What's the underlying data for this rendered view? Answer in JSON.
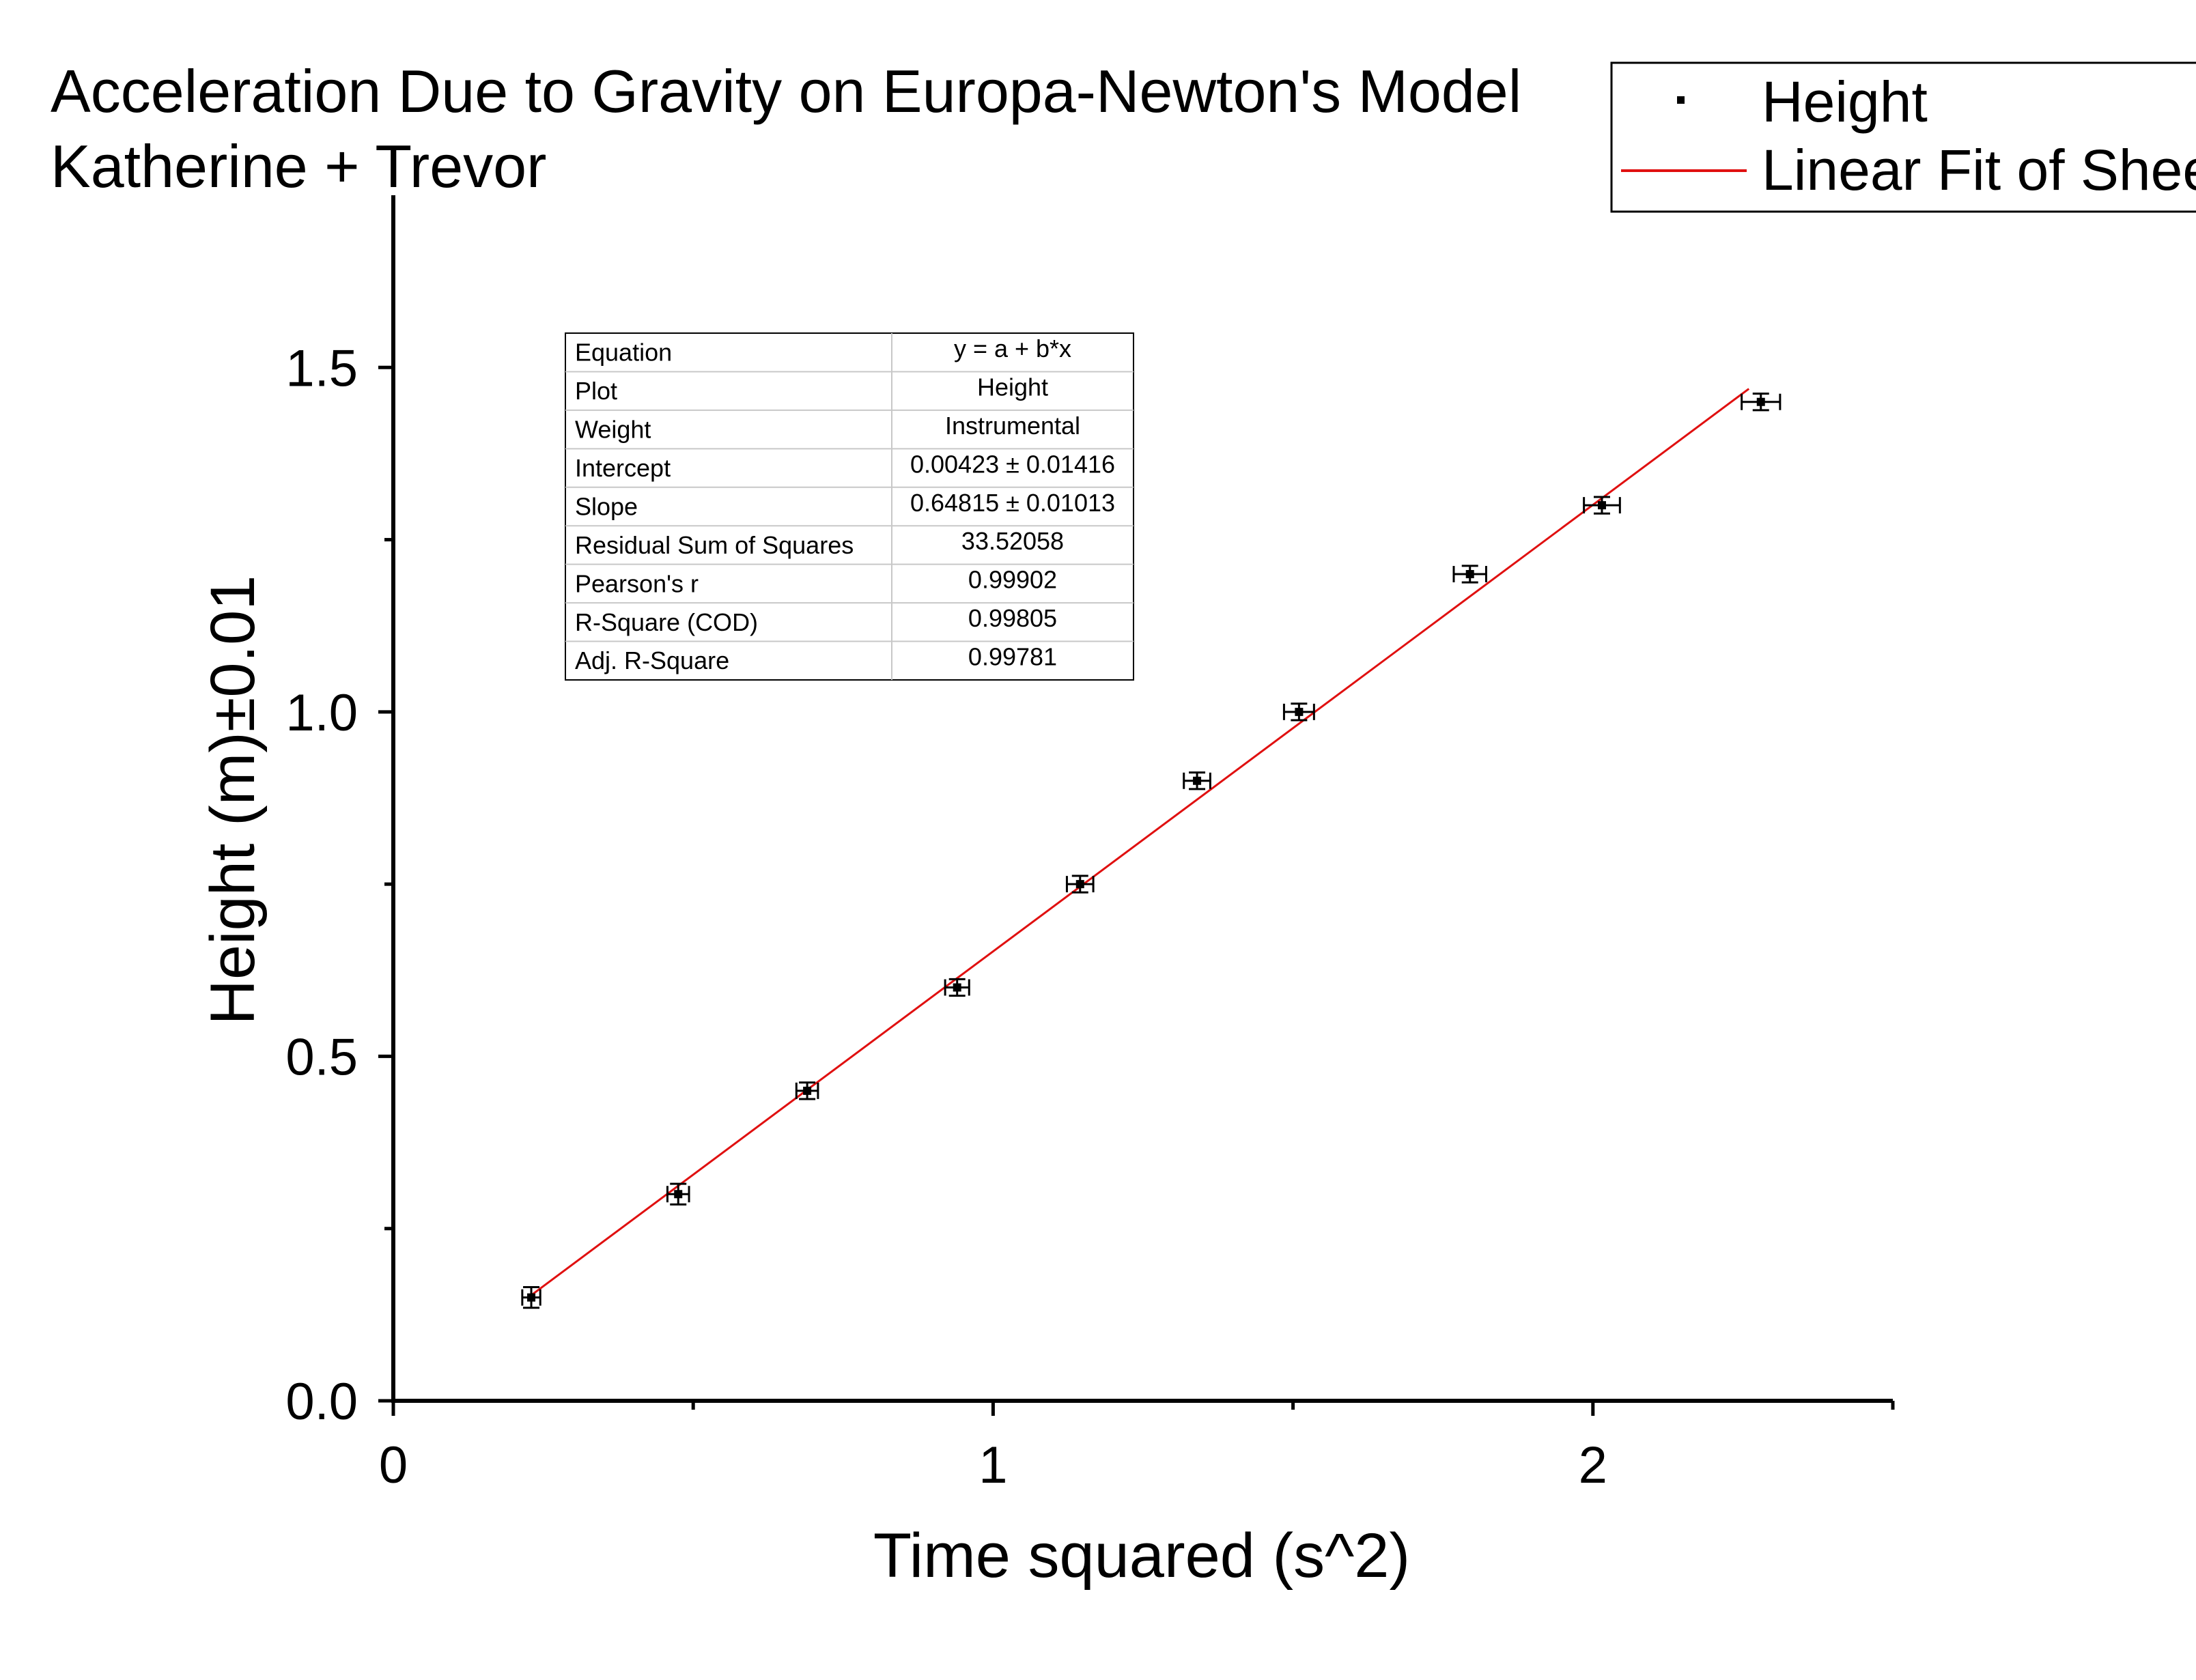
{
  "chart_data": {
    "type": "scatter",
    "title": "Acceleration Due to Gravity on Europa-Newton's Model",
    "subtitle": "Katherine + Trevor",
    "xlabel": "Time squared (s^2)",
    "ylabel": "Height (m)±0.01",
    "xlim": [
      0,
      2.5
    ],
    "ylim": [
      0,
      1.75
    ],
    "x_ticks": [
      {
        "value": 0,
        "label": "0"
      },
      {
        "value": 1,
        "label": "1"
      },
      {
        "value": 2,
        "label": "2"
      }
    ],
    "x_minor_ticks": [
      0.5,
      1.5,
      2.5
    ],
    "y_ticks": [
      {
        "value": 0.0,
        "label": "0.0"
      },
      {
        "value": 0.5,
        "label": "0.5"
      },
      {
        "value": 1.0,
        "label": "1.0"
      },
      {
        "value": 1.5,
        "label": "1.5"
      }
    ],
    "y_minor_ticks": [
      0.25,
      0.75,
      1.25
    ],
    "grid": false,
    "series": [
      {
        "name": "Height",
        "color": "#000000",
        "points": [
          {
            "x": 0.23,
            "y": 0.15,
            "xerr": 0.015,
            "yerr": 0.015
          },
          {
            "x": 0.475,
            "y": 0.3,
            "xerr": 0.018,
            "yerr": 0.015
          },
          {
            "x": 0.69,
            "y": 0.45,
            "xerr": 0.018,
            "yerr": 0.012
          },
          {
            "x": 0.94,
            "y": 0.6,
            "xerr": 0.02,
            "yerr": 0.012
          },
          {
            "x": 1.145,
            "y": 0.75,
            "xerr": 0.022,
            "yerr": 0.012
          },
          {
            "x": 1.34,
            "y": 0.9,
            "xerr": 0.022,
            "yerr": 0.012
          },
          {
            "x": 1.51,
            "y": 1.0,
            "xerr": 0.025,
            "yerr": 0.012
          },
          {
            "x": 1.795,
            "y": 1.2,
            "xerr": 0.027,
            "yerr": 0.012
          },
          {
            "x": 2.015,
            "y": 1.3,
            "xerr": 0.03,
            "yerr": 0.012
          },
          {
            "x": 2.28,
            "y": 1.45,
            "xerr": 0.032,
            "yerr": 0.012
          }
        ]
      }
    ],
    "fit": {
      "name": "Linear Fit of Shee",
      "color": "#e01010",
      "intercept": 0.00423,
      "slope": 0.64815,
      "x_range": [
        0.23,
        2.26
      ]
    },
    "legend": {
      "placement": "top-right",
      "entries": [
        {
          "label": "Height",
          "marker": "point"
        },
        {
          "label": "Linear Fit of Shee",
          "marker": "line"
        }
      ]
    },
    "stats_table": [
      {
        "label": "Equation",
        "value": "y = a + b*x"
      },
      {
        "label": "Plot",
        "value": "Height"
      },
      {
        "label": "Weight",
        "value": "Instrumental"
      },
      {
        "label": "Intercept",
        "value": "0.00423 ± 0.01416"
      },
      {
        "label": "Slope",
        "value": "0.64815 ± 0.01013"
      },
      {
        "label": "Residual Sum of Squares",
        "value": "33.52058"
      },
      {
        "label": "Pearson's r",
        "value": "0.99902"
      },
      {
        "label": "R-Square (COD)",
        "value": "0.99805"
      },
      {
        "label": "Adj. R-Square",
        "value": "0.99781"
      }
    ]
  }
}
